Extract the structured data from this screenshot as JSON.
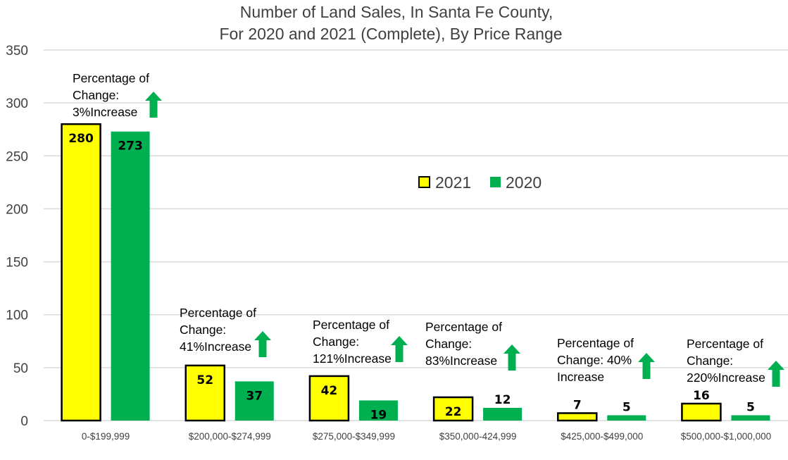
{
  "chart_data": {
    "type": "bar",
    "title": [
      "Number of Land Sales, In Santa Fe County,",
      "For 2020 and 2021 (Complete), By Price Range"
    ],
    "xlabel": "",
    "ylabel": "",
    "ylim": [
      0,
      350
    ],
    "yticks": [
      "0",
      "50",
      "100",
      "150",
      "200",
      "250",
      "300",
      "350"
    ],
    "grid": true,
    "legend_position": "center",
    "categories": [
      "0-$199,999",
      "$200,000-$274,999",
      "$275,000-$349,999",
      "$350,000-424,999",
      "$425,000-$499,000",
      "$500,000-$1,000,000"
    ],
    "series": [
      {
        "name": "2021",
        "values": [
          280,
          52,
          42,
          22,
          7,
          16
        ],
        "labels": [
          "280",
          "52",
          "42",
          "22",
          "7",
          "16"
        ],
        "color": "#FFFF00",
        "outline": "#000000"
      },
      {
        "name": "2020",
        "values": [
          273,
          37,
          19,
          12,
          5,
          5
        ],
        "labels": [
          "273",
          "37",
          "19",
          "12",
          "5",
          "5"
        ],
        "color": "#00B050",
        "outline": "none"
      }
    ],
    "annotations": [
      {
        "lines": [
          "Percentage of",
          "Change:",
          "3%Increase"
        ],
        "arrow": "up",
        "arrow_color": "#00B050"
      },
      {
        "lines": [
          "Percentage of",
          "Change:",
          "41%Increase"
        ],
        "arrow": "up",
        "arrow_color": "#00B050"
      },
      {
        "lines": [
          "Percentage of",
          "Change:",
          "121%Increase"
        ],
        "arrow": "up",
        "arrow_color": "#00B050"
      },
      {
        "lines": [
          "Percentage of",
          "Change:",
          "83%Increase"
        ],
        "arrow": "up",
        "arrow_color": "#00B050"
      },
      {
        "lines": [
          "Percentage of",
          "Change:  40%",
          "Increase"
        ],
        "arrow": "up",
        "arrow_color": "#00B050"
      },
      {
        "lines": [
          "Percentage of",
          "Change:",
          "220%Increase"
        ],
        "arrow": "up",
        "arrow_color": "#00B050"
      }
    ]
  }
}
